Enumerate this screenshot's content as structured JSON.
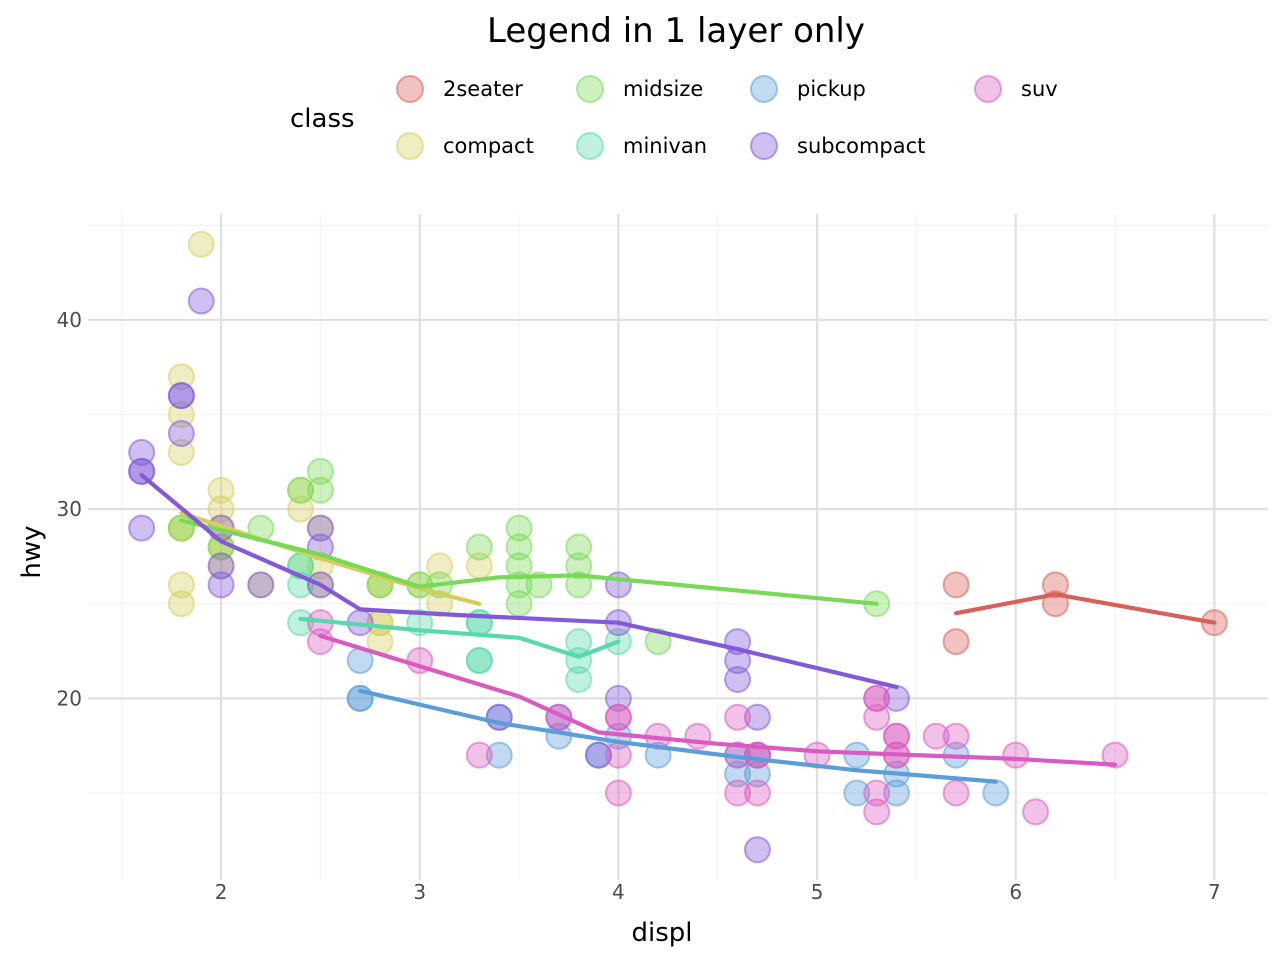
{
  "chart_data": {
    "type": "scatter",
    "title": "Legend in 1 layer only",
    "xlabel": "displ",
    "ylabel": "hwy",
    "xlim": [
      1.33,
      7.27
    ],
    "ylim": [
      10.4,
      45.6
    ],
    "x_ticks": [
      2,
      3,
      4,
      5,
      6,
      7
    ],
    "y_ticks": [
      20,
      30,
      40
    ],
    "grid": true,
    "legend": {
      "title": "class",
      "position": "top",
      "entries": [
        "2seater",
        "compact",
        "midsize",
        "minivan",
        "pickup",
        "subcompact",
        "suv"
      ]
    },
    "colors": {
      "2seater": "#d95f59",
      "compact": "#d4cf5d",
      "midsize": "#78d957",
      "minivan": "#57d9a9",
      "pickup": "#5b9dd9",
      "subcompact": "#825ad9",
      "suv": "#d95bc1"
    },
    "series": [
      {
        "name": "2seater",
        "points": [
          [
            5.7,
            26
          ],
          [
            5.7,
            23
          ],
          [
            6.2,
            26
          ],
          [
            6.2,
            25
          ],
          [
            7.0,
            24
          ]
        ],
        "trend": [
          [
            5.7,
            24.5
          ],
          [
            6.2,
            25.5
          ],
          [
            7.0,
            24
          ]
        ]
      },
      {
        "name": "compact",
        "points": [
          [
            1.8,
            29
          ],
          [
            1.8,
            29
          ],
          [
            2.0,
            31
          ],
          [
            2.0,
            30
          ],
          [
            2.8,
            26
          ],
          [
            2.8,
            26
          ],
          [
            3.1,
            27
          ],
          [
            1.8,
            26
          ],
          [
            1.8,
            25
          ],
          [
            2.0,
            28
          ],
          [
            2.0,
            28
          ],
          [
            2.8,
            24
          ],
          [
            2.8,
            24
          ],
          [
            3.1,
            25
          ],
          [
            2.0,
            27
          ],
          [
            2.2,
            26
          ],
          [
            2.4,
            30
          ],
          [
            2.4,
            31
          ],
          [
            3.0,
            26
          ],
          [
            2.5,
            27
          ],
          [
            2.5,
            26
          ],
          [
            1.8,
            33
          ],
          [
            1.8,
            35
          ],
          [
            1.8,
            37
          ],
          [
            1.9,
            44
          ],
          [
            2.0,
            29
          ],
          [
            2.5,
            29
          ],
          [
            2.8,
            23
          ],
          [
            3.3,
            27
          ]
        ],
        "trend": [
          [
            1.8,
            29.8
          ],
          [
            2.0,
            29.1
          ],
          [
            2.5,
            27.4
          ],
          [
            3.0,
            25.8
          ],
          [
            3.3,
            25.0
          ]
        ]
      },
      {
        "name": "midsize",
        "points": [
          [
            1.8,
            29
          ],
          [
            2.0,
            28
          ],
          [
            2.4,
            27
          ],
          [
            2.5,
            32
          ],
          [
            2.5,
            31
          ],
          [
            2.8,
            26
          ],
          [
            3.0,
            26
          ],
          [
            3.1,
            26
          ],
          [
            3.3,
            28
          ],
          [
            3.5,
            29
          ],
          [
            3.5,
            28
          ],
          [
            3.5,
            27
          ],
          [
            3.5,
            26
          ],
          [
            3.5,
            25
          ],
          [
            3.6,
            26
          ],
          [
            3.8,
            28
          ],
          [
            3.8,
            27
          ],
          [
            3.8,
            26
          ],
          [
            4.2,
            23
          ],
          [
            5.3,
            25
          ],
          [
            2.4,
            31
          ],
          [
            2.2,
            29
          ]
        ],
        "trend": [
          [
            1.8,
            29.4
          ],
          [
            2.0,
            28.9
          ],
          [
            2.5,
            27.6
          ],
          [
            3.0,
            25.9
          ],
          [
            3.4,
            26.4
          ],
          [
            3.8,
            26.5
          ],
          [
            4.5,
            25.8
          ],
          [
            5.3,
            25.0
          ]
        ]
      },
      {
        "name": "minivan",
        "points": [
          [
            2.4,
            24
          ],
          [
            3.0,
            24
          ],
          [
            3.3,
            22
          ],
          [
            3.3,
            22
          ],
          [
            3.3,
            24
          ],
          [
            3.3,
            24
          ],
          [
            3.8,
            22
          ],
          [
            3.8,
            21
          ],
          [
            3.8,
            23
          ],
          [
            4.0,
            23
          ],
          [
            2.4,
            27
          ],
          [
            2.4,
            26
          ]
        ],
        "trend": [
          [
            2.4,
            24.2
          ],
          [
            3.0,
            23.6
          ],
          [
            3.5,
            23.2
          ],
          [
            3.8,
            22.2
          ],
          [
            4.0,
            23.0
          ]
        ]
      },
      {
        "name": "pickup",
        "points": [
          [
            2.7,
            20
          ],
          [
            2.7,
            20
          ],
          [
            2.7,
            22
          ],
          [
            3.4,
            17
          ],
          [
            3.4,
            19
          ],
          [
            3.7,
            18
          ],
          [
            4.0,
            18
          ],
          [
            4.2,
            17
          ],
          [
            4.6,
            17
          ],
          [
            4.6,
            16
          ],
          [
            4.7,
            17
          ],
          [
            5.2,
            17
          ],
          [
            5.2,
            15
          ],
          [
            5.4,
            16
          ],
          [
            5.4,
            15
          ],
          [
            5.7,
            17
          ],
          [
            5.9,
            15
          ],
          [
            3.9,
            17
          ],
          [
            4.7,
            16
          ]
        ],
        "trend": [
          [
            2.7,
            20.4
          ],
          [
            3.4,
            18.7
          ],
          [
            4.0,
            17.7
          ],
          [
            4.6,
            16.9
          ],
          [
            5.2,
            16.2
          ],
          [
            5.9,
            15.6
          ]
        ]
      },
      {
        "name": "subcompact",
        "points": [
          [
            1.6,
            33
          ],
          [
            1.6,
            32
          ],
          [
            1.6,
            32
          ],
          [
            1.6,
            29
          ],
          [
            1.8,
            36
          ],
          [
            1.8,
            36
          ],
          [
            1.8,
            34
          ],
          [
            1.9,
            41
          ],
          [
            2.0,
            29
          ],
          [
            2.0,
            27
          ],
          [
            2.0,
            26
          ],
          [
            2.2,
            26
          ],
          [
            2.5,
            29
          ],
          [
            2.5,
            28
          ],
          [
            2.5,
            26
          ],
          [
            2.7,
            24
          ],
          [
            3.4,
            19
          ],
          [
            3.7,
            19
          ],
          [
            3.9,
            17
          ],
          [
            4.0,
            26
          ],
          [
            4.0,
            24
          ],
          [
            4.0,
            20
          ],
          [
            4.6,
            23
          ],
          [
            4.6,
            22
          ],
          [
            4.6,
            21
          ],
          [
            4.7,
            19
          ],
          [
            4.7,
            12
          ],
          [
            5.4,
            20
          ]
        ],
        "trend": [
          [
            1.6,
            31.8
          ],
          [
            2.0,
            28.3
          ],
          [
            2.5,
            26.0
          ],
          [
            2.7,
            24.7
          ],
          [
            3.2,
            24.4
          ],
          [
            4.0,
            24.0
          ],
          [
            4.6,
            22.6
          ],
          [
            5.4,
            20.6
          ]
        ]
      },
      {
        "name": "suv",
        "points": [
          [
            2.5,
            23
          ],
          [
            2.5,
            24
          ],
          [
            3.0,
            22
          ],
          [
            3.3,
            17
          ],
          [
            3.7,
            19
          ],
          [
            4.0,
            19
          ],
          [
            4.0,
            17
          ],
          [
            4.0,
            15
          ],
          [
            4.2,
            18
          ],
          [
            4.4,
            18
          ],
          [
            4.6,
            19
          ],
          [
            4.6,
            15
          ],
          [
            4.7,
            17
          ],
          [
            4.7,
            15
          ],
          [
            5.0,
            17
          ],
          [
            5.3,
            20
          ],
          [
            5.3,
            19
          ],
          [
            5.3,
            15
          ],
          [
            5.3,
            14
          ],
          [
            5.4,
            18
          ],
          [
            5.4,
            17
          ],
          [
            5.6,
            18
          ],
          [
            5.7,
            18
          ],
          [
            5.7,
            15
          ],
          [
            6.0,
            17
          ],
          [
            6.1,
            14
          ],
          [
            6.5,
            17
          ],
          [
            4.0,
            19
          ],
          [
            4.6,
            17
          ],
          [
            4.7,
            17
          ],
          [
            5.3,
            20
          ],
          [
            5.4,
            18
          ],
          [
            5.4,
            17
          ]
        ],
        "trend": [
          [
            2.5,
            23.3
          ],
          [
            3.0,
            21.7
          ],
          [
            3.5,
            20.1
          ],
          [
            3.9,
            18.2
          ],
          [
            4.5,
            17.6
          ],
          [
            5.0,
            17.2
          ],
          [
            5.5,
            17.0
          ],
          [
            6.0,
            16.8
          ],
          [
            6.5,
            16.5
          ]
        ]
      }
    ]
  }
}
